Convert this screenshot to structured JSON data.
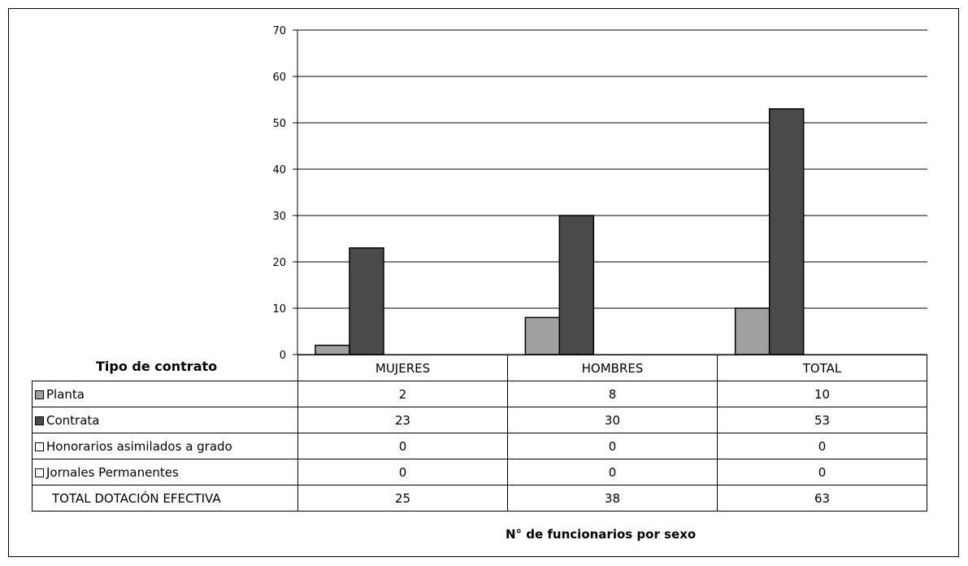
{
  "chart_data": {
    "type": "bar",
    "categories": [
      "MUJERES",
      "HOMBRES",
      "TOTAL"
    ],
    "series": [
      {
        "name": "Planta",
        "values": [
          2,
          8,
          10
        ],
        "color": "#a0a0a0"
      },
      {
        "name": "Contrata",
        "values": [
          23,
          30,
          53
        ],
        "color": "#4a4a4a"
      },
      {
        "name": "Honorarios asimilados a grado",
        "values": [
          0,
          0,
          0
        ],
        "color": "#ffffff"
      },
      {
        "name": "Jornales Permanentes",
        "values": [
          0,
          0,
          0
        ],
        "color": "#ffffff"
      }
    ],
    "totals": {
      "label": "TOTAL DOTACIÓN EFECTIVA",
      "values": [
        25,
        38,
        63
      ]
    },
    "ylim": [
      0,
      70
    ],
    "yticks": [
      0,
      10,
      20,
      30,
      40,
      50,
      60,
      70
    ],
    "grid": true,
    "legend_title": "Tipo de contrato",
    "xlabel": "N° de funcionarios por sexo",
    "ylabel": ""
  }
}
